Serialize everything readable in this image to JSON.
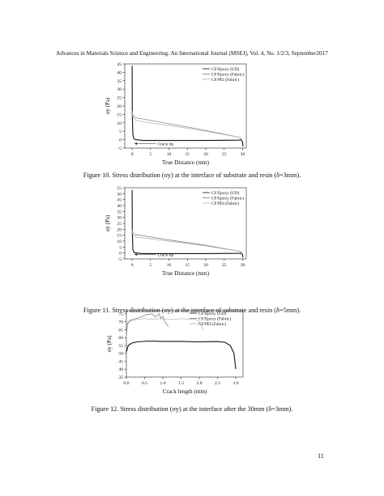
{
  "header": "Advances in Materials Science and Engineering: An International Journal (MSEJ), Vol. 4, No. 1/2/3, September2017",
  "page_number": "11",
  "captions": {
    "fig10": "Figure 10. Stress distribution (σy) at the interface of substrate and resin (δ=3mm).",
    "fig11": "Figure 11. Stress distribution (σy) at the interface of substrate and resin (δ=5mm).",
    "fig12": "Figure 12. Stress distribution (σy) at the interface after the 30mm  (δ=3mm)."
  },
  "chart_data": [
    {
      "type": "line",
      "ylabel": "σy (Pa)",
      "xlabel": "True Distance (mm)",
      "annotation": "Crack tip",
      "xlim": [
        -2,
        31
      ],
      "ylim": [
        -5,
        45
      ],
      "xticks": [
        0,
        5,
        10,
        15,
        20,
        25,
        30
      ],
      "yticks": [
        -5,
        0,
        5,
        10,
        15,
        20,
        25,
        30,
        35,
        40,
        45
      ],
      "legend_position": "top-right",
      "series": [
        {
          "name": "CF/Epoxy (UD)",
          "color": "#111111",
          "x": [
            0,
            0.05,
            0.2,
            0.5,
            1,
            3,
            10,
            20,
            29,
            29.5,
            30,
            30.1
          ],
          "y": [
            44,
            15,
            3,
            0.5,
            0,
            -0.5,
            -0.5,
            -0.5,
            -0.3,
            0,
            -1.5,
            -4
          ]
        },
        {
          "name": "CF/Epoxy (Fabric)",
          "color": "#777777",
          "x": [
            0,
            0.1,
            0.5,
            1,
            5,
            10,
            20,
            29,
            29.6,
            30
          ],
          "y": [
            16,
            15,
            14,
            13,
            11.5,
            9.5,
            5.5,
            1.5,
            1,
            -1
          ]
        },
        {
          "name": "CF/PEI (Fabric)",
          "color": "#aaaaaa",
          "x": [
            0,
            0.1,
            0.5,
            1,
            5,
            10,
            20,
            29,
            29.6,
            30
          ],
          "y": [
            17,
            14,
            12.5,
            11.5,
            10,
            8.5,
            5,
            1.5,
            1,
            -1
          ]
        }
      ]
    },
    {
      "type": "line",
      "ylabel": "σy (Pa)",
      "xlabel": "True Distance (mm)",
      "annotation": "Crack tip",
      "xlim": [
        -2,
        31
      ],
      "ylim": [
        -5,
        55
      ],
      "xticks": [
        0,
        5,
        10,
        15,
        20,
        25,
        30
      ],
      "yticks": [
        -5,
        0,
        5,
        10,
        15,
        20,
        25,
        30,
        35,
        40,
        45,
        50,
        55
      ],
      "legend_position": "top-right",
      "series": [
        {
          "name": "CF/Epoxy (UD)",
          "color": "#111111",
          "x": [
            0,
            0.05,
            0.2,
            0.5,
            1,
            3,
            10,
            20,
            29,
            29.5,
            30,
            30.1
          ],
          "y": [
            53,
            18,
            3,
            0.5,
            0,
            -0.5,
            -0.5,
            -0.5,
            -0.3,
            0,
            -1.5,
            -4
          ]
        },
        {
          "name": "CF/Epoxy (Fabric)",
          "color": "#777777",
          "x": [
            0,
            0.1,
            0.5,
            1,
            5,
            10,
            20,
            29,
            29.6,
            30
          ],
          "y": [
            19,
            17.5,
            16.5,
            15.5,
            13.5,
            11,
            6.5,
            1.5,
            1,
            -1
          ]
        },
        {
          "name": "CF/PEI (Fabric)",
          "color": "#aaaaaa",
          "x": [
            0,
            0.1,
            0.5,
            1,
            5,
            10,
            20,
            29,
            29.6,
            30
          ],
          "y": [
            20,
            16,
            14.5,
            13.5,
            12,
            10,
            6,
            1.5,
            1,
            -1
          ]
        }
      ]
    },
    {
      "type": "line",
      "ylabel": "σy (Pa)",
      "xlabel": "Crack length (mm)",
      "xlim": [
        0,
        3.2
      ],
      "ylim": [
        35,
        77
      ],
      "xticks": [
        0.0,
        0.5,
        1.0,
        1.5,
        2.0,
        2.5,
        3.0
      ],
      "xtick_labels": [
        "0.0",
        "0.5",
        "1.0",
        "1.5",
        "2.0",
        "2.5",
        "3.0"
      ],
      "yticks": [
        35,
        40,
        45,
        50,
        55,
        60,
        65,
        70,
        75
      ],
      "legend_position": "top-right",
      "series": [
        {
          "name": "CF/Epoxy (UD)",
          "color": "#111111",
          "x": [
            0,
            0.05,
            0.15,
            0.3,
            0.6,
            1.0,
            1.5,
            2.0,
            2.5,
            2.7,
            2.85,
            2.95,
            3.0
          ],
          "y": [
            51,
            55,
            56.5,
            57.3,
            57.8,
            57.6,
            57.6,
            57.3,
            57.5,
            57,
            55,
            50,
            40
          ]
        },
        {
          "name": "CF/Epoxy (Fabric)",
          "color": "#777777",
          "x": [
            0,
            0.03,
            0.1,
            0.25,
            0.4,
            0.55,
            0.7,
            0.8,
            0.9,
            0.95,
            1.0,
            1.05,
            1.15
          ],
          "y": [
            61,
            69,
            71,
            72,
            73,
            74.5,
            75,
            73,
            75,
            72,
            73.5,
            70,
            67
          ]
        },
        {
          "name": "CF/PEI (Fabric)",
          "color": "#aaaaaa",
          "x": [
            0,
            0.03,
            0.1,
            0.3,
            0.5,
            0.7,
            0.9,
            1.1,
            1.3,
            1.5,
            1.7,
            1.9,
            2.0,
            2.05,
            2.1
          ],
          "y": [
            60,
            68,
            70.5,
            71.5,
            72,
            71.5,
            72,
            71.5,
            71.5,
            72,
            71.5,
            71.5,
            70,
            68,
            65
          ]
        }
      ]
    }
  ]
}
